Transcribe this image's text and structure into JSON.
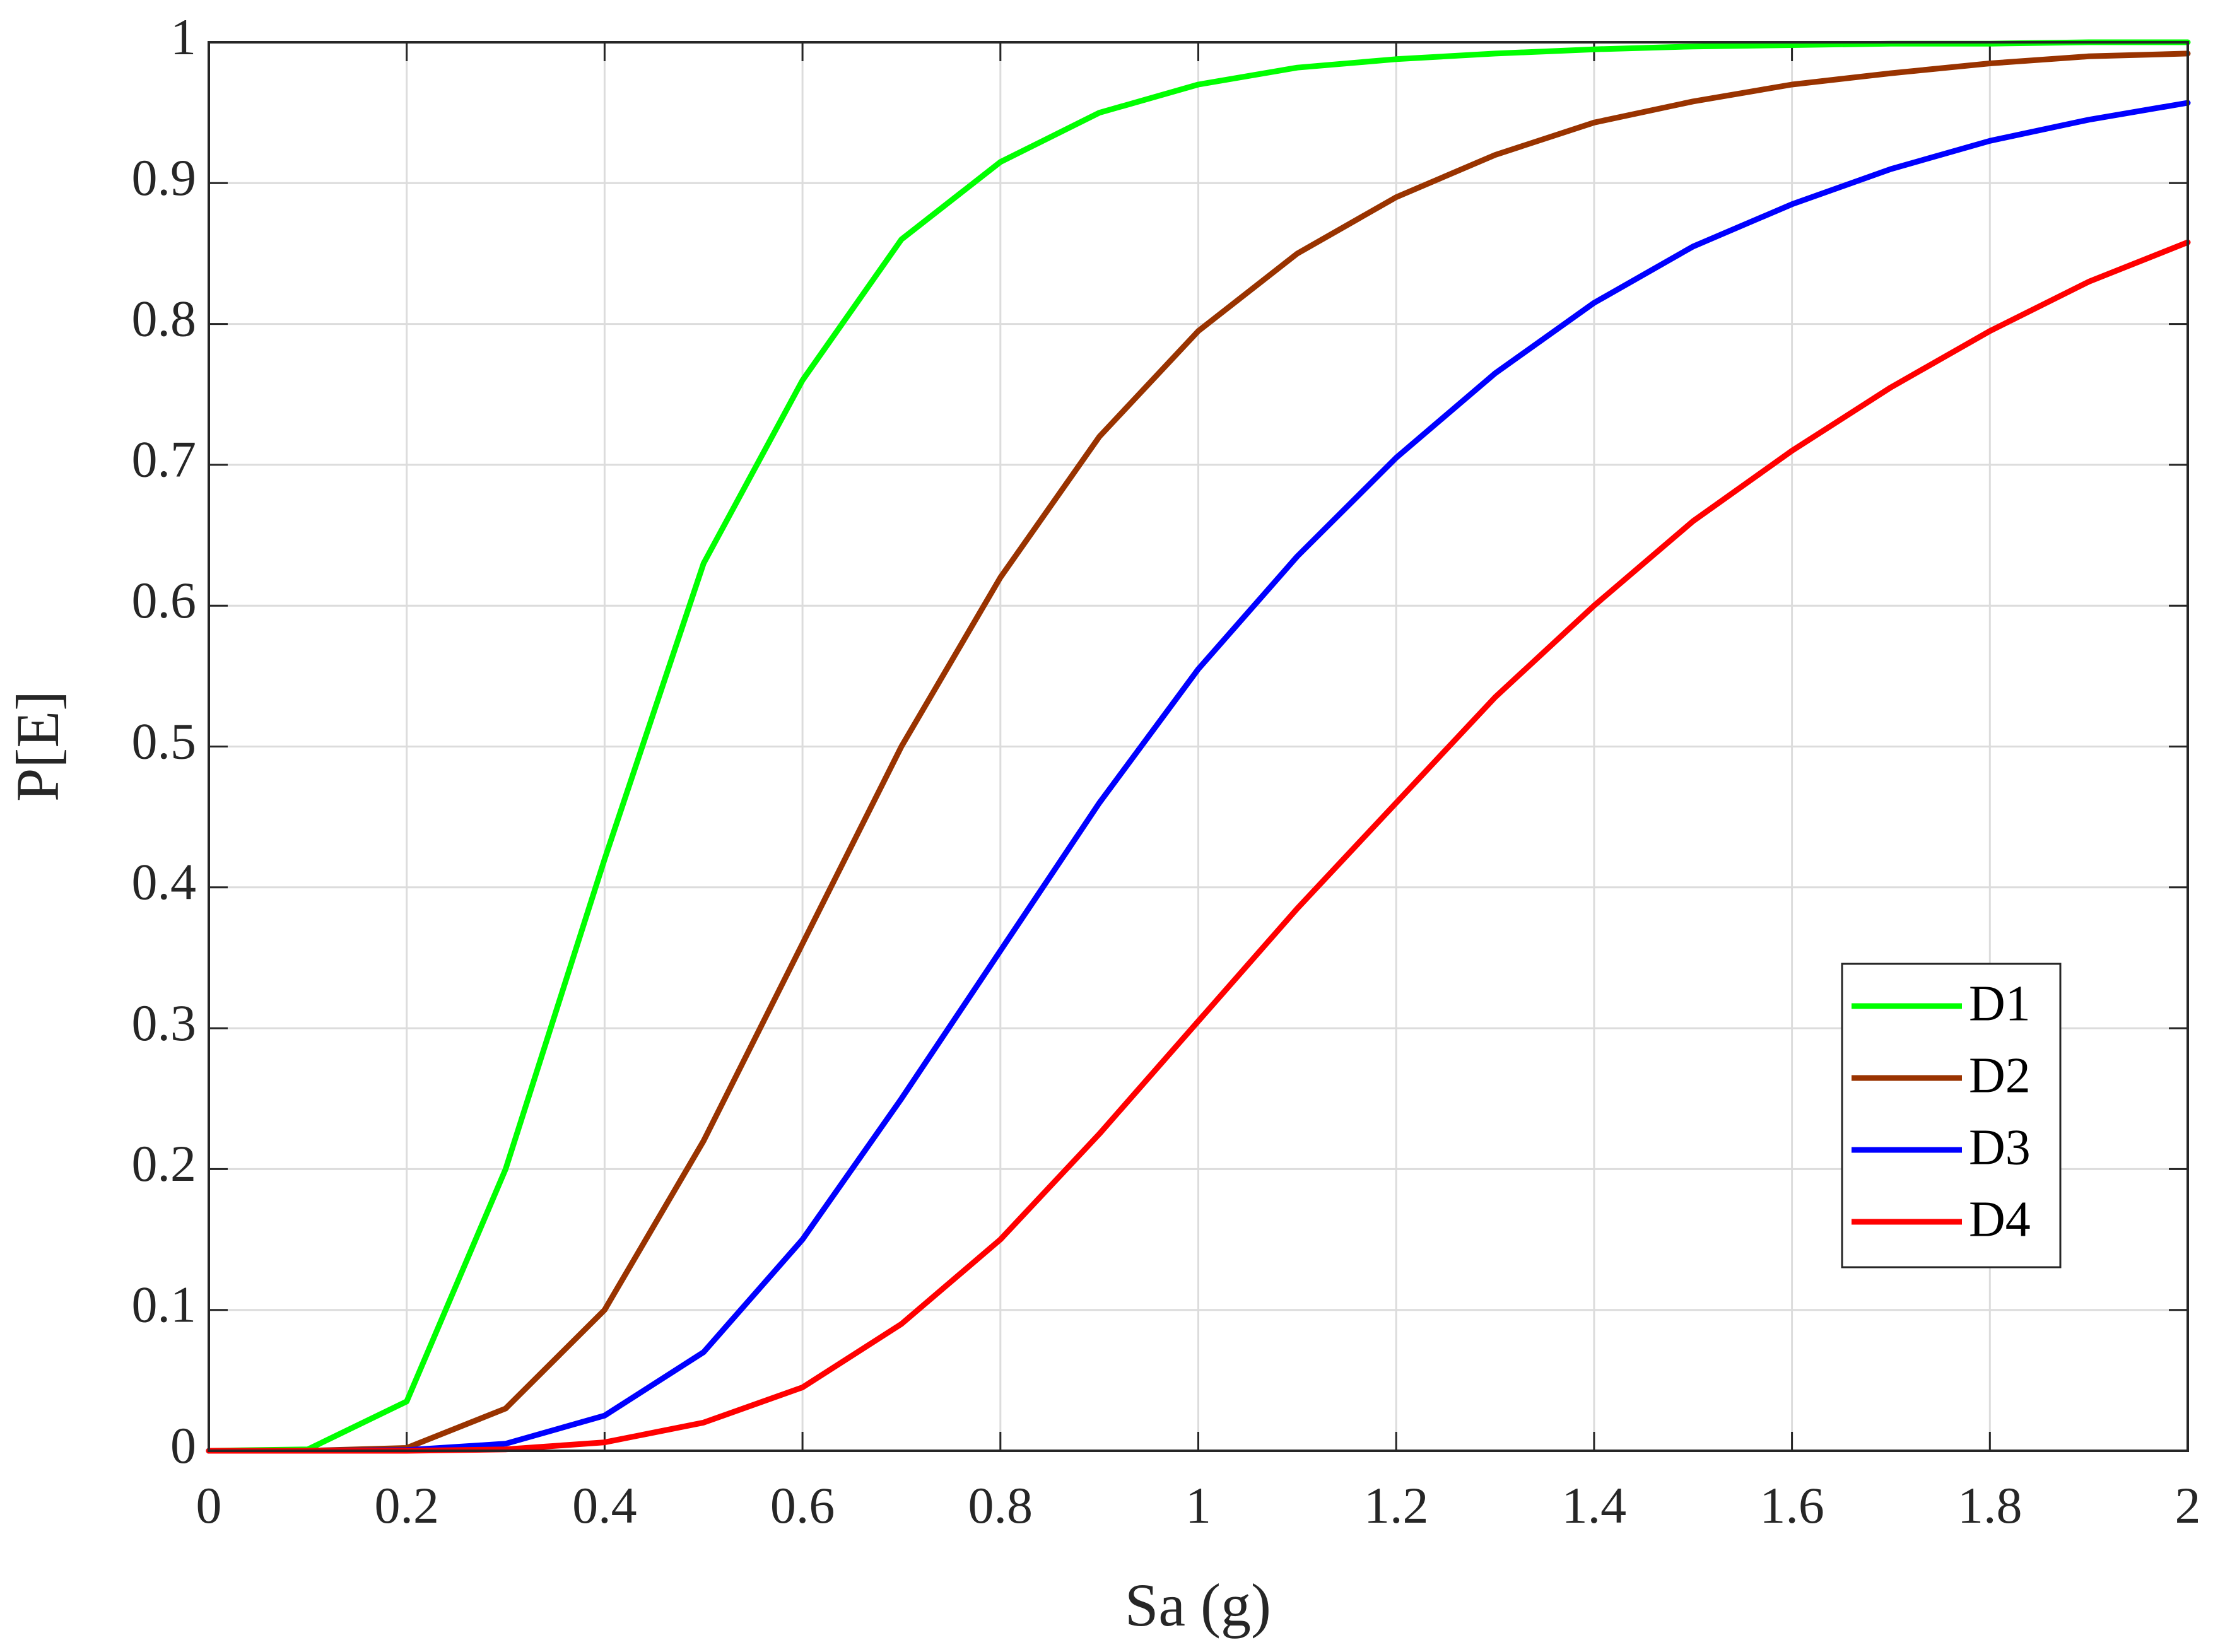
{
  "chart_data": {
    "type": "line",
    "xlabel": "Sa (g)",
    "ylabel": "P[E]",
    "x": [
      0,
      0.1,
      0.2,
      0.3,
      0.4,
      0.5,
      0.6,
      0.7,
      0.8,
      0.9,
      1.0,
      1.1,
      1.2,
      1.3,
      1.4,
      1.5,
      1.6,
      1.7,
      1.8,
      1.9,
      2.0
    ],
    "series": [
      {
        "name": "D1",
        "color": "#00ff00",
        "values": [
          0,
          0.001,
          0.035,
          0.2,
          0.42,
          0.63,
          0.76,
          0.86,
          0.915,
          0.95,
          0.97,
          0.982,
          0.988,
          0.992,
          0.995,
          0.997,
          0.998,
          0.999,
          0.999,
          1.0,
          1.0
        ]
      },
      {
        "name": "D2",
        "color": "#993300",
        "values": [
          0,
          0,
          0.002,
          0.03,
          0.1,
          0.22,
          0.36,
          0.5,
          0.62,
          0.72,
          0.795,
          0.85,
          0.89,
          0.92,
          0.943,
          0.958,
          0.97,
          0.978,
          0.985,
          0.99,
          0.992
        ]
      },
      {
        "name": "D3",
        "color": "#0000ff",
        "values": [
          0,
          0,
          0.0005,
          0.005,
          0.025,
          0.07,
          0.15,
          0.25,
          0.355,
          0.46,
          0.555,
          0.635,
          0.705,
          0.765,
          0.815,
          0.855,
          0.885,
          0.91,
          0.93,
          0.945,
          0.957
        ]
      },
      {
        "name": "D4",
        "color": "#ff0000",
        "values": [
          0,
          0,
          0,
          0.001,
          0.006,
          0.02,
          0.045,
          0.09,
          0.15,
          0.225,
          0.305,
          0.385,
          0.46,
          0.535,
          0.6,
          0.66,
          0.71,
          0.755,
          0.795,
          0.83,
          0.858
        ]
      }
    ],
    "xlim": [
      0,
      2
    ],
    "xticks": [
      0,
      0.2,
      0.4,
      0.6,
      0.8,
      1,
      1.2,
      1.4,
      1.6,
      1.8,
      2
    ],
    "ylim": [
      0,
      1
    ],
    "yticks": [
      0,
      0.1,
      0.2,
      0.3,
      0.4,
      0.5,
      0.6,
      0.7,
      0.8,
      0.9,
      1
    ],
    "grid": true,
    "legend": "lower right"
  }
}
